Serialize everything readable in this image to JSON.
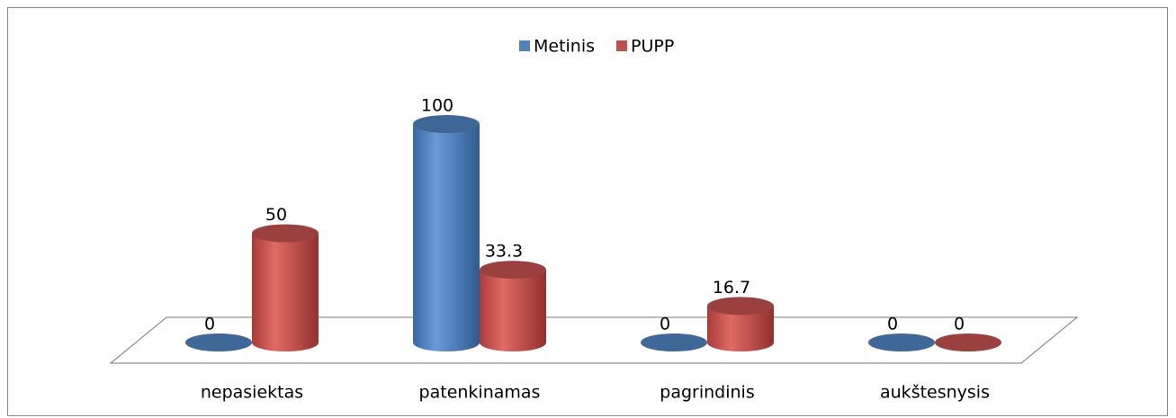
{
  "chart_data": {
    "type": "bar3d",
    "categories": [
      "nepasiektas",
      "patenkinamas",
      "pagrindinis",
      "aukštesnysis"
    ],
    "series": [
      {
        "name": "Metinis",
        "color": "#4f81bd",
        "values": [
          0,
          100,
          0,
          0
        ]
      },
      {
        "name": "PUPP",
        "color": "#c0504d",
        "values": [
          50,
          33.3,
          16.7,
          0
        ]
      }
    ],
    "legend": "top"
  }
}
